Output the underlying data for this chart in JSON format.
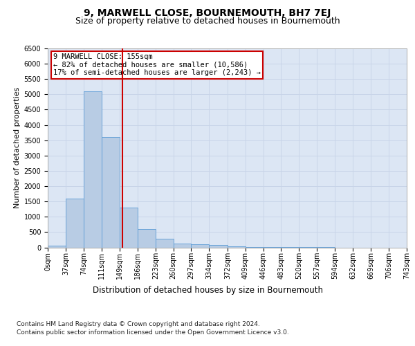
{
  "title": "9, MARWELL CLOSE, BOURNEMOUTH, BH7 7EJ",
  "subtitle": "Size of property relative to detached houses in Bournemouth",
  "xlabel": "Distribution of detached houses by size in Bournemouth",
  "ylabel": "Number of detached properties",
  "footer1": "Contains HM Land Registry data © Crown copyright and database right 2024.",
  "footer2": "Contains public sector information licensed under the Open Government Licence v3.0.",
  "bar_values": [
    50,
    1600,
    5100,
    3600,
    1300,
    600,
    280,
    130,
    100,
    70,
    30,
    10,
    5,
    3,
    2,
    1,
    0,
    0,
    0,
    0
  ],
  "bin_edges": [
    0,
    37,
    74,
    111,
    149,
    186,
    223,
    260,
    297,
    334,
    372,
    409,
    446,
    483,
    520,
    557,
    594,
    632,
    669,
    706,
    743
  ],
  "bin_labels": [
    "0sqm",
    "37sqm",
    "74sqm",
    "111sqm",
    "149sqm",
    "186sqm",
    "223sqm",
    "260sqm",
    "297sqm",
    "334sqm",
    "372sqm",
    "409sqm",
    "446sqm",
    "483sqm",
    "520sqm",
    "557sqm",
    "594sqm",
    "632sqm",
    "669sqm",
    "706sqm",
    "743sqm"
  ],
  "bar_color": "#b8cce4",
  "bar_edge_color": "#5b9bd5",
  "property_line_x": 155,
  "annotation_text_lines": [
    "9 MARWELL CLOSE: 155sqm",
    "← 82% of detached houses are smaller (10,586)",
    "17% of semi-detached houses are larger (2,243) →"
  ],
  "annotation_box_color": "#cc0000",
  "vertical_line_color": "#cc0000",
  "ylim": [
    0,
    6500
  ],
  "grid_color": "#c8d4e8",
  "background_color": "#dce6f4",
  "title_fontsize": 10,
  "subtitle_fontsize": 9,
  "ylabel_fontsize": 8,
  "xlabel_fontsize": 8.5,
  "tick_fontsize": 7,
  "annotation_fontsize": 7.5,
  "footer_fontsize": 6.5
}
